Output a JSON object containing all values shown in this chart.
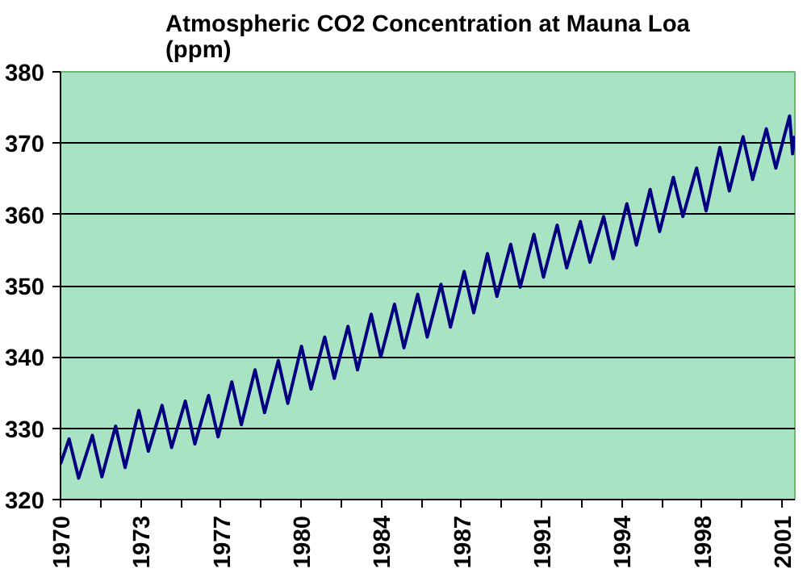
{
  "chart_data": {
    "type": "line",
    "title": "Atmospheric CO2 Concentration at Mauna Loa\n(ppm)",
    "x": [
      1970.0,
      1970.37,
      1970.78,
      1971.37,
      1971.78,
      1972.37,
      1972.78,
      1973.37,
      1973.78,
      1974.37,
      1974.78,
      1975.37,
      1975.78,
      1976.37,
      1976.78,
      1977.37,
      1977.78,
      1978.37,
      1978.78,
      1979.37,
      1979.78,
      1980.37,
      1980.78,
      1981.37,
      1981.78,
      1982.37,
      1982.78,
      1983.37,
      1983.78,
      1984.37,
      1984.78,
      1985.37,
      1985.78,
      1986.37,
      1986.78,
      1987.37,
      1987.78,
      1988.37,
      1988.78,
      1989.37,
      1989.78,
      1990.37,
      1990.78,
      1991.37,
      1991.78,
      1992.37,
      1992.78,
      1993.37,
      1993.78,
      1994.37,
      1994.78,
      1995.37,
      1995.78,
      1996.37,
      1996.78,
      1997.37,
      1997.78,
      1998.37,
      1998.78,
      1999.37,
      1999.78,
      2000.37,
      2000.78,
      2001.37,
      2001.5,
      2001.58
    ],
    "series": [
      {
        "color": "#000080",
        "values": [
          325.0,
          328.5,
          323.0,
          329.0,
          323.2,
          330.3,
          324.5,
          332.5,
          326.8,
          333.2,
          327.3,
          333.8,
          327.8,
          334.6,
          328.8,
          336.5,
          330.5,
          338.2,
          332.2,
          339.5,
          333.5,
          341.5,
          335.5,
          342.8,
          337.0,
          344.3,
          338.2,
          346.0,
          340.0,
          347.4,
          341.3,
          348.8,
          342.8,
          350.2,
          344.2,
          352.0,
          346.2,
          354.5,
          348.5,
          355.8,
          349.8,
          357.2,
          351.2,
          358.5,
          352.5,
          359.0,
          353.3,
          359.7,
          353.8,
          361.5,
          355.7,
          363.5,
          357.6,
          365.2,
          359.7,
          366.5,
          360.5,
          369.4,
          363.3,
          370.9,
          364.9,
          372.0,
          366.5,
          373.8,
          368.5,
          371.0
        ]
      }
    ],
    "xlim": [
      1970,
      2001.6
    ],
    "xticks": [
      {
        "value": 1970,
        "label": "1970"
      },
      {
        "value": 1971.725,
        "label": null
      },
      {
        "value": 1973.45,
        "label": "1973"
      },
      {
        "value": 1975.175,
        "label": null
      },
      {
        "value": 1976.9,
        "label": "1977"
      },
      {
        "value": 1978.625,
        "label": null
      },
      {
        "value": 1980.35,
        "label": "1980"
      },
      {
        "value": 1982.075,
        "label": null
      },
      {
        "value": 1983.8,
        "label": "1984"
      },
      {
        "value": 1985.525,
        "label": null
      },
      {
        "value": 1987.25,
        "label": "1987"
      },
      {
        "value": 1988.975,
        "label": null
      },
      {
        "value": 1990.7,
        "label": "1991"
      },
      {
        "value": 1992.425,
        "label": null
      },
      {
        "value": 1994.15,
        "label": "1994"
      },
      {
        "value": 1995.875,
        "label": null
      },
      {
        "value": 1997.6,
        "label": "1998"
      },
      {
        "value": 1999.325,
        "label": null
      },
      {
        "value": 2001.05,
        "label": "2001"
      }
    ],
    "ylim": [
      320,
      380
    ],
    "yticks": [
      320,
      330,
      340,
      350,
      360,
      370,
      380
    ],
    "grid": "y",
    "marker": "none",
    "line_style": "solid"
  }
}
